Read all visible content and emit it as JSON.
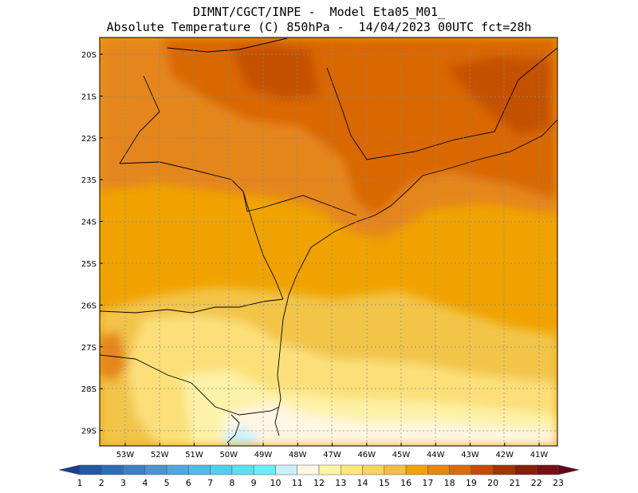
{
  "header": {
    "line1": "DIMNT/CGCT/INPE -  Model Eta05_M01_",
    "line2": "Absolute Temperature (C) 850hPa -  14/04/2023 00UTC fct=28h"
  },
  "axes": {
    "lat_labels": [
      "20S",
      "21S",
      "22S",
      "23S",
      "24S",
      "25S",
      "26S",
      "27S",
      "28S",
      "29S"
    ],
    "lon_labels": [
      "53W",
      "52W",
      "51W",
      "50W",
      "49W",
      "48W",
      "47W",
      "46W",
      "45W",
      "44W",
      "43W",
      "42W",
      "41W"
    ]
  },
  "colorbar": {
    "labels": [
      "1",
      "2",
      "3",
      "4",
      "5",
      "6",
      "7",
      "8",
      "9",
      "10",
      "11",
      "12",
      "13",
      "14",
      "15",
      "16",
      "17",
      "18",
      "19",
      "20",
      "21",
      "22",
      "23"
    ],
    "colors": [
      "#1b3f8f",
      "#2457a6",
      "#2f6cb8",
      "#3b80c6",
      "#4a94d2",
      "#4fa8dc",
      "#4dbde4",
      "#4fd0ea",
      "#59e0ef",
      "#66f0f6",
      "#c9f0fb",
      "#fff6e3",
      "#fef5a5",
      "#fde77a",
      "#f7d55c",
      "#f2bf44",
      "#f0a300",
      "#e8870c",
      "#dd6b04",
      "#c64a00",
      "#a53300",
      "#8a1d09",
      "#7a0f14",
      "#650018"
    ]
  },
  "legend_colors": {
    "warm_max": "#c45100",
    "warm": "#d96705",
    "orange": "#e5861f",
    "amber": "#f0a300",
    "gold": "#f2c54a",
    "yellow": "#fbe07a",
    "pale_yellow": "#fdf2a8",
    "cream": "#fff6e3",
    "light_cyan": "#c9f0fb"
  }
}
